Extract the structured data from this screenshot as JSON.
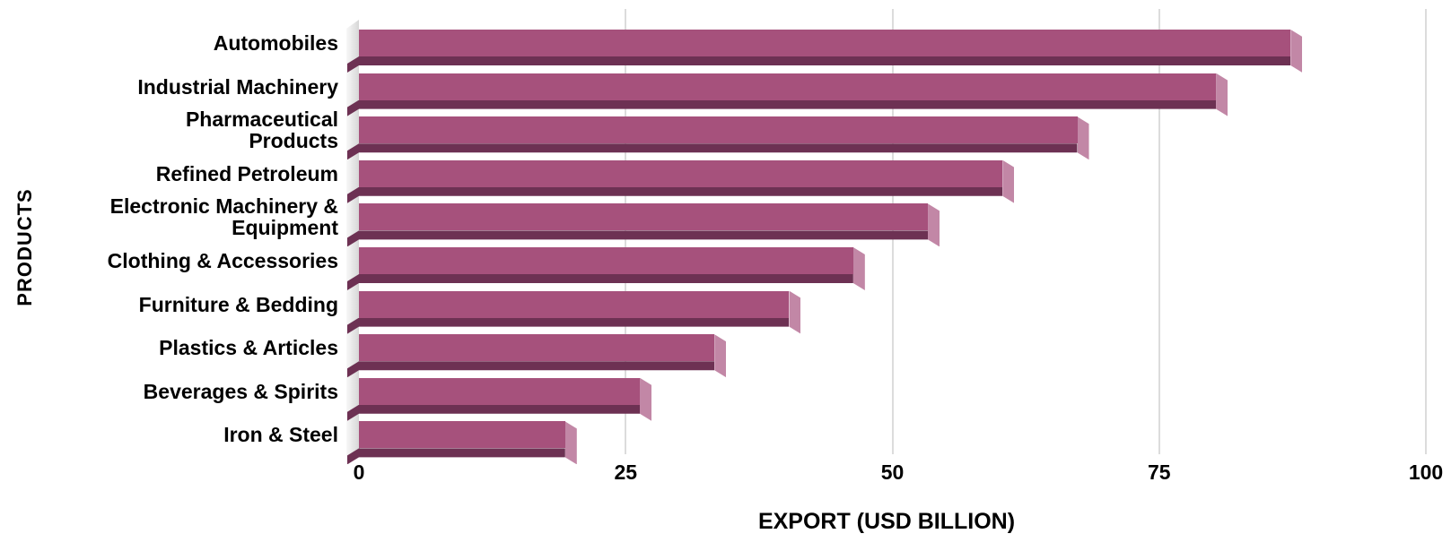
{
  "chart_data": {
    "type": "bar",
    "orientation": "horizontal",
    "title": "",
    "xlabel": "EXPORT (USD BILLION)",
    "ylabel": "PRODUCTS",
    "xlim": [
      0,
      100
    ],
    "xticks": [
      0,
      25,
      50,
      75,
      100
    ],
    "grid": "vertical-gridlines-on",
    "legend": "none",
    "categories": [
      "Automobiles",
      "Industrial Machinery",
      "Pharmaceutical Products",
      "Refined Petroleum",
      "Electronic Machinery & Equipment",
      "Clothing & Accessories",
      "Furniture & Bedding",
      "Plastics & Articles",
      "Beverages & Spirits",
      "Iron & Steel"
    ],
    "category_label_lines": [
      [
        "Automobiles"
      ],
      [
        "Industrial Machinery"
      ],
      [
        "Pharmaceutical",
        "Products"
      ],
      [
        "Refined Petroleum"
      ],
      [
        "Electronic Machinery &",
        "Equipment"
      ],
      [
        "Clothing & Accessories"
      ],
      [
        "Furniture & Bedding"
      ],
      [
        "Plastics & Articles"
      ],
      [
        "Beverages & Spirits"
      ],
      [
        "Iron & Steel"
      ]
    ],
    "values": [
      88,
      81,
      68,
      61,
      54,
      47,
      41,
      34,
      27,
      20
    ],
    "bar_color": "#a6517c",
    "bar_bottom_shadow_color": "#6d3153",
    "bar_end_cap_color": "#c287a6",
    "gridline_color": "#dcdcdc",
    "text_color": "#000000",
    "background_color": "#ffffff"
  }
}
